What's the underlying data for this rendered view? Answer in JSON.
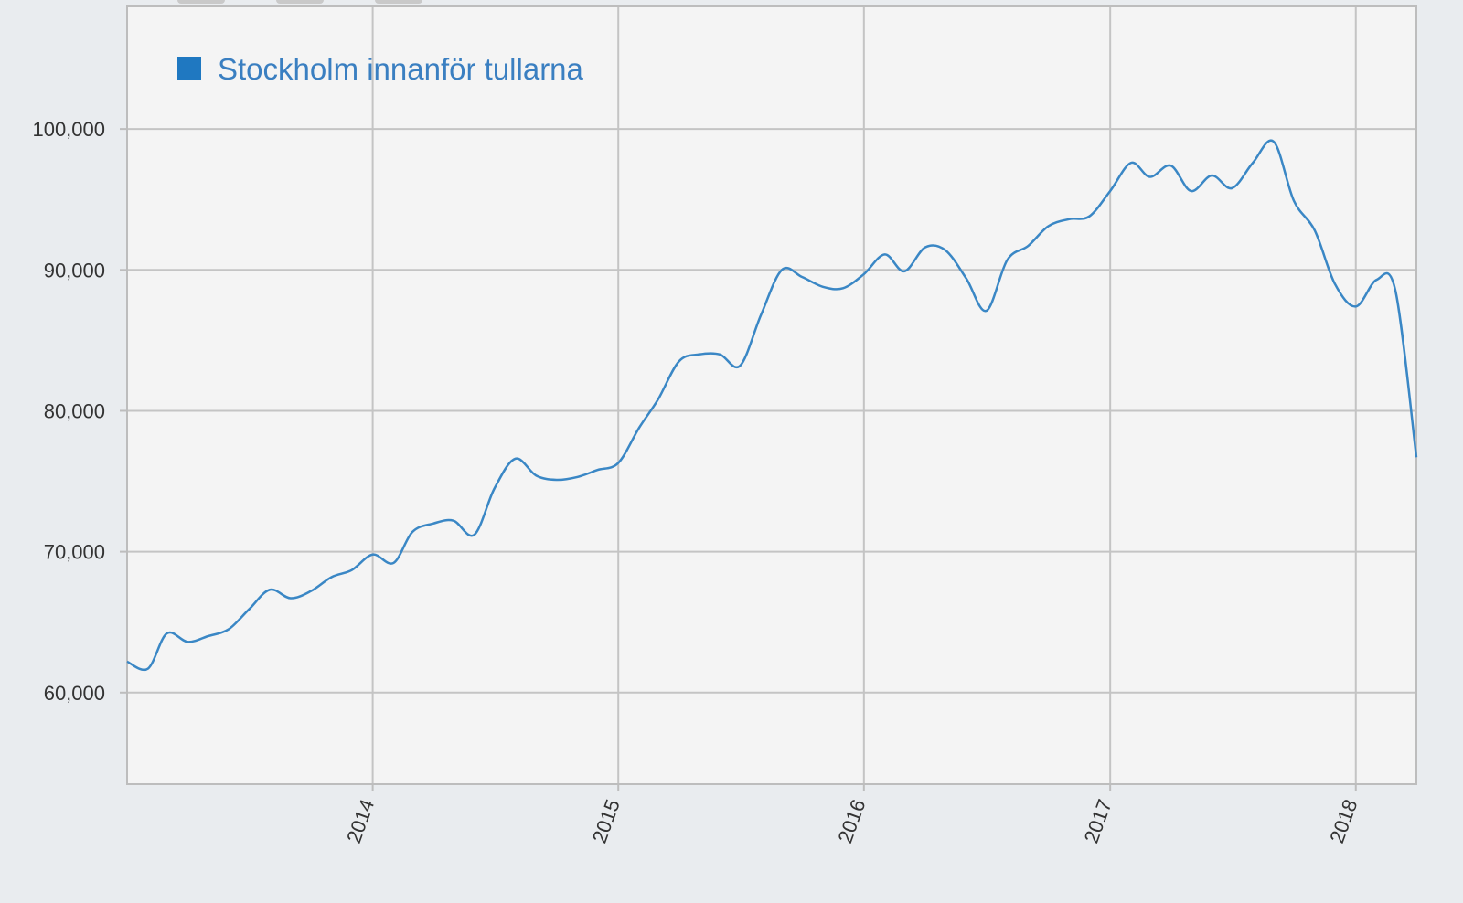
{
  "colors": {
    "background": "#e9ecef",
    "plot_background": "#f4f4f4",
    "grid": "#c4c4c4",
    "axis": "#bdbdbd",
    "series": "#3a87c5",
    "legend_swatch": "#1f78c1",
    "legend_text": "#3a7fc1",
    "tick_text": "#333333"
  },
  "chart_data": {
    "type": "line",
    "title": "",
    "xlabel": "",
    "ylabel": "",
    "xlim": [
      "2013-01-01",
      "2018-04-01"
    ],
    "ylim": [
      53500,
      108700
    ],
    "grid": true,
    "legend_position": "top-left",
    "x_ticks": [
      "2014",
      "2015",
      "2016",
      "2017",
      "2018"
    ],
    "y_ticks": [
      "60,000",
      "70,000",
      "80,000",
      "90,000",
      "100,000"
    ],
    "x_tick_dates": [
      "2014-01-01",
      "2015-01-01",
      "2016-01-01",
      "2017-01-01",
      "2018-01-01"
    ],
    "y_tick_values": [
      60000,
      70000,
      80000,
      90000,
      100000
    ],
    "series": [
      {
        "name": "Stockholm innanför tullarna",
        "x": [
          "2013-01",
          "2013-02",
          "2013-03",
          "2013-04",
          "2013-05",
          "2013-06",
          "2013-07",
          "2013-08",
          "2013-09",
          "2013-10",
          "2013-11",
          "2013-12",
          "2014-01",
          "2014-02",
          "2014-03",
          "2014-04",
          "2014-05",
          "2014-06",
          "2014-07",
          "2014-08",
          "2014-09",
          "2014-10",
          "2014-11",
          "2014-12",
          "2015-01",
          "2015-02",
          "2015-03",
          "2015-04",
          "2015-05",
          "2015-06",
          "2015-07",
          "2015-08",
          "2015-09",
          "2015-10",
          "2015-11",
          "2015-12",
          "2016-01",
          "2016-02",
          "2016-03",
          "2016-04",
          "2016-05",
          "2016-06",
          "2016-07",
          "2016-08",
          "2016-09",
          "2016-10",
          "2016-11",
          "2016-12",
          "2017-01",
          "2017-02",
          "2017-03",
          "2017-04",
          "2017-05",
          "2017-06",
          "2017-07",
          "2017-08",
          "2017-09",
          "2017-10",
          "2017-11",
          "2017-12",
          "2018-01",
          "2018-02",
          "2018-03",
          "2018-04"
        ],
        "y": [
          62200,
          61700,
          64200,
          63600,
          64000,
          64500,
          65900,
          67300,
          66700,
          67200,
          68200,
          68700,
          69800,
          69200,
          71400,
          72000,
          72200,
          71200,
          74500,
          76600,
          75400,
          75100,
          75300,
          75800,
          76300,
          78800,
          80800,
          83500,
          84000,
          84000,
          83200,
          86800,
          90000,
          89500,
          88800,
          88700,
          89700,
          91100,
          89900,
          91600,
          91400,
          89400,
          87100,
          90700,
          91700,
          93100,
          93600,
          93800,
          95600,
          97600,
          96600,
          97400,
          95600,
          96700,
          95800,
          97600,
          99100,
          94900,
          92800,
          89000,
          87400,
          89300,
          88500,
          76700
        ]
      }
    ]
  }
}
